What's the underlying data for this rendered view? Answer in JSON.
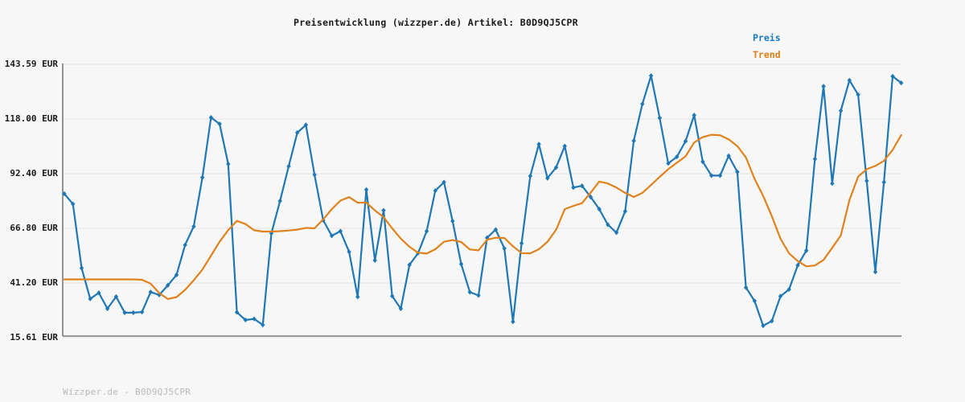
{
  "header": {
    "title": "Preisentwicklung (wizzper.de) Artikel: B0D9QJ5CPR"
  },
  "legend": {
    "items": [
      {
        "label": "Preis",
        "color": "#1878be"
      },
      {
        "label": "Trend",
        "color": "#dd7e10"
      }
    ]
  },
  "footer": {
    "watermark": "Wizzper.de - B0D9QJ5CPR"
  },
  "colors": {
    "background": "#f7f7f7",
    "gridline": "#e3e3e3",
    "axis_spine": "#787878",
    "price_line": "#1f77b4",
    "trend_line": "#e0821c",
    "title_text": "#1a1a1a",
    "watermark_text": "#b9b9b9"
  },
  "chart_data": {
    "type": "line",
    "title": "Preisentwicklung (wizzper.de) Artikel: B0D9QJ5CPR",
    "xlabel": "",
    "ylabel": "",
    "unit": "EUR",
    "ylim": [
      15.61,
      143.59
    ],
    "grid": "horizontal",
    "legend_position": "top-right",
    "x_tick_labels": "none",
    "yticks": [
      {
        "value": 143.59,
        "label": "143.59 EUR"
      },
      {
        "value": 118.0,
        "label": "118.00 EUR"
      },
      {
        "value": 92.4,
        "label": "92.40 EUR"
      },
      {
        "value": 66.8,
        "label": "66.80 EUR"
      },
      {
        "value": 41.2,
        "label": "41.20 EUR"
      },
      {
        "value": 15.61,
        "label": "15.61 EUR"
      }
    ],
    "series": [
      {
        "name": "Preis",
        "color": "#1f77b4",
        "marker": "diamond",
        "values": [
          83.0,
          78.2,
          48.2,
          33.8,
          36.6,
          29.2,
          34.8,
          27.3,
          27.3,
          27.6,
          37.0,
          35.6,
          40.1,
          45.0,
          59.0,
          67.7,
          90.6,
          118.7,
          115.7,
          96.9,
          27.5,
          23.9,
          24.4,
          21.6,
          64.5,
          79.6,
          95.9,
          111.6,
          115.2,
          91.9,
          70.6,
          63.3,
          65.5,
          55.8,
          34.7,
          84.9,
          51.8,
          75.2,
          35.1,
          29.2,
          49.7,
          55.2,
          65.5,
          84.4,
          88.4,
          70.2,
          50.1,
          36.9,
          35.4,
          62.4,
          66.2,
          57.4,
          23.1,
          59.8,
          91.3,
          106.2,
          90.3,
          95.3,
          105.3,
          85.9,
          86.7,
          81.5,
          75.8,
          68.5,
          64.8,
          74.8,
          107.8,
          125.0,
          138.3,
          118.5,
          97.2,
          100.3,
          107.6,
          119.8,
          98.0,
          91.5,
          91.5,
          100.7,
          93.2,
          39.1,
          32.8,
          21.2,
          23.4,
          35.0,
          38.2,
          49.5,
          56.4,
          99.3,
          133.3,
          87.8,
          121.9,
          136.1,
          129.4,
          89.0,
          46.4,
          88.4,
          138.0,
          134.9
        ]
      },
      {
        "name": "Trend",
        "color": "#e0821c",
        "marker": "none",
        "values": [
          42.9,
          42.9,
          42.9,
          42.9,
          42.9,
          42.9,
          42.9,
          42.9,
          42.9,
          42.7,
          40.9,
          36.5,
          33.7,
          34.6,
          38.0,
          42.5,
          47.5,
          54.0,
          60.5,
          66.0,
          70.3,
          68.8,
          65.9,
          65.3,
          65.3,
          65.5,
          65.8,
          66.2,
          67.0,
          66.8,
          71.0,
          75.8,
          79.8,
          81.4,
          78.8,
          78.9,
          75.2,
          72.1,
          66.8,
          62.0,
          58.2,
          55.4,
          55.0,
          57.0,
          60.5,
          61.3,
          60.4,
          56.9,
          56.5,
          61.5,
          62.4,
          62.3,
          58.4,
          55.2,
          55.1,
          57.0,
          60.5,
          66.1,
          75.8,
          77.3,
          78.6,
          83.5,
          88.7,
          87.8,
          85.9,
          83.4,
          81.5,
          83.4,
          87.1,
          90.9,
          94.5,
          97.5,
          100.5,
          107.0,
          109.5,
          110.6,
          110.4,
          108.5,
          105.3,
          100.0,
          90.0,
          82.0,
          72.5,
          62.0,
          55.1,
          51.5,
          49.0,
          49.4,
          52.0,
          57.7,
          63.5,
          80.0,
          91.0,
          94.5,
          96.0,
          98.4,
          103.5,
          110.5
        ]
      }
    ]
  }
}
